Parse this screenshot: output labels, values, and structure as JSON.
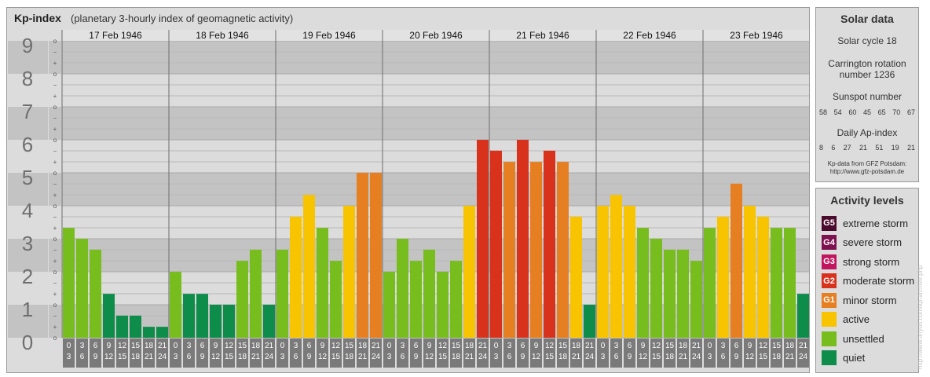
{
  "header": {
    "title": "Kp-index",
    "subtitle": "(planetary 3-hourly index of geomagnetic activity)"
  },
  "colors": {
    "quiet": "#0e8c4a",
    "unsettled": "#76bd1d",
    "active": "#f8c400",
    "minor": "#e67e22",
    "moderate": "#d8321d",
    "strong": "#c1155d",
    "severe": "#7e1150",
    "extreme": "#4b0b2d"
  },
  "chart_data": {
    "type": "bar",
    "ylabel": "",
    "ylim": [
      0,
      9
    ],
    "y_ticks": [
      "0",
      "1",
      "2",
      "3",
      "4",
      "5",
      "6",
      "7",
      "8",
      "9"
    ],
    "minor_tick_labels": [
      "+",
      "o",
      "−"
    ],
    "days": [
      "17 Feb 1946",
      "18 Feb 1946",
      "19 Feb 1946",
      "20 Feb 1946",
      "21 Feb 1946",
      "22 Feb 1946",
      "23 Feb 1946"
    ],
    "interval_labels": [
      [
        "0",
        "3"
      ],
      [
        "3",
        "6"
      ],
      [
        "6",
        "9"
      ],
      [
        "9",
        "12"
      ],
      [
        "12",
        "15"
      ],
      [
        "15",
        "18"
      ],
      [
        "18",
        "21"
      ],
      [
        "21",
        "24"
      ]
    ],
    "values": [
      [
        3.33,
        3.0,
        2.67,
        1.33,
        0.67,
        0.67,
        0.33,
        0.33
      ],
      [
        2.0,
        1.33,
        1.33,
        1.0,
        1.0,
        2.33,
        2.67,
        1.0
      ],
      [
        2.67,
        3.67,
        4.33,
        3.33,
        2.33,
        4.0,
        5.0,
        5.0
      ],
      [
        2.0,
        3.0,
        2.33,
        2.67,
        2.0,
        2.33,
        4.0,
        6.0
      ],
      [
        5.67,
        5.33,
        6.0,
        5.33,
        5.67,
        5.33,
        3.67,
        1.0
      ],
      [
        4.0,
        4.33,
        4.0,
        3.33,
        3.0,
        2.67,
        2.67,
        2.33
      ],
      [
        3.33,
        3.67,
        4.67,
        4.0,
        3.67,
        3.33,
        3.33,
        1.33
      ]
    ]
  },
  "solar": {
    "title": "Solar data",
    "cycle": "Solar cycle 18",
    "carrington_line1": "Carrington rotation",
    "carrington_line2": "number 1236",
    "sunspot_title": "Sunspot number",
    "sunspot_values": [
      "58",
      "54",
      "60",
      "45",
      "65",
      "70",
      "67"
    ],
    "ap_title": "Daily Ap-index",
    "ap_values": [
      "8",
      "6",
      "27",
      "21",
      "51",
      "19",
      "21"
    ],
    "source_line1": "Kp-data from GFZ Potsdam:",
    "source_line2": "http://www.gfz-potsdam.de"
  },
  "activity": {
    "title": "Activity levels",
    "levels": [
      {
        "badge": "G5",
        "label": "extreme storm",
        "color": "#4b0b2d"
      },
      {
        "badge": "G4",
        "label": "severe storm",
        "color": "#7e1150"
      },
      {
        "badge": "G3",
        "label": "strong storm",
        "color": "#c1155d"
      },
      {
        "badge": "G2",
        "label": "moderate storm",
        "color": "#d8321d"
      },
      {
        "badge": "G1",
        "label": "minor storm",
        "color": "#e67e22"
      },
      {
        "badge": "",
        "label": "active",
        "color": "#f8c400"
      },
      {
        "badge": "",
        "label": "unsettled",
        "color": "#76bd1d"
      },
      {
        "badge": "",
        "label": "quiet",
        "color": "#0e8c4a"
      }
    ]
  },
  "watermark": "http://www.tinyurl.com/kp-archive.php"
}
